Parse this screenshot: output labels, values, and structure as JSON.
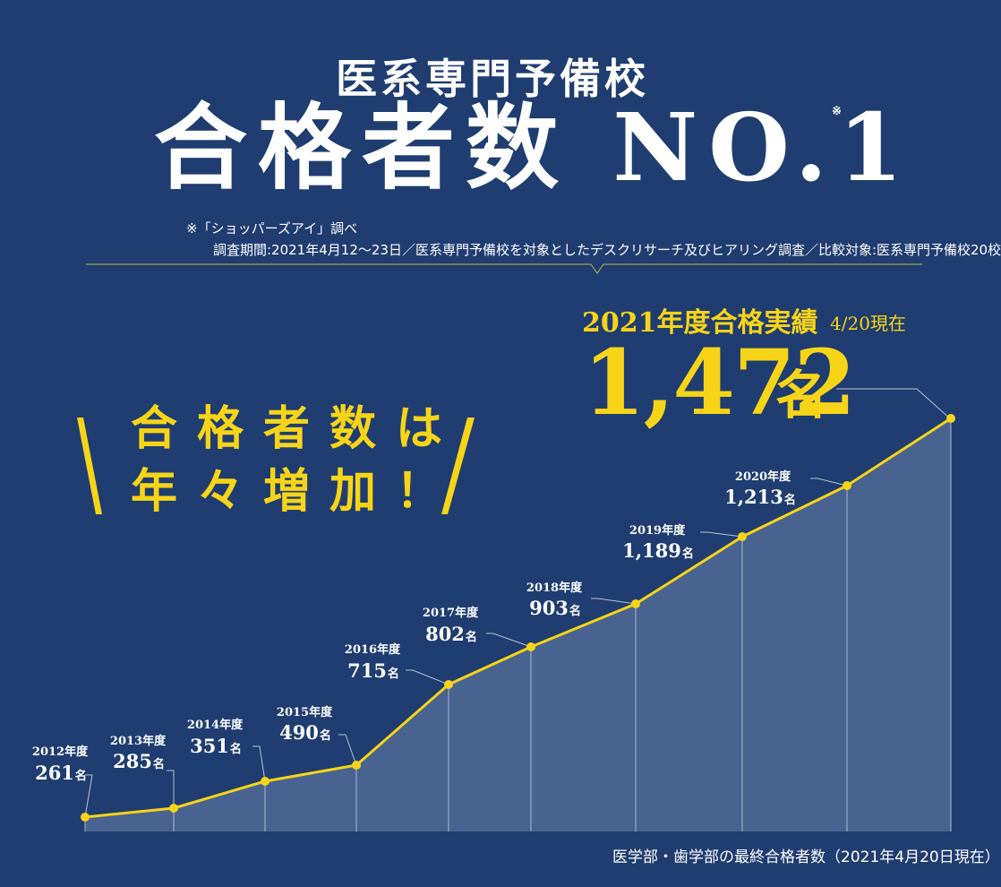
{
  "header": {
    "subtitle": "医系専門予備校",
    "headline": "合格者数 NO.1",
    "headline_mark": "※"
  },
  "notes": {
    "line1": "※「ショッパーズアイ」調べ",
    "line2": "調査期間:2021年4月12～23日／医系専門予備校を対象としたデスクリサーチ及びヒアリング調査／比較対象:医系専門予備校20校"
  },
  "callout": {
    "label": "2021年度合格実績",
    "date": "4/20現在",
    "number": "1,472",
    "unit": "名"
  },
  "slogan": {
    "line1": "合格者数は",
    "line2": "年々増加！"
  },
  "footnote": "医学部・歯学部の最終合格者数（2021年4月20日現在）",
  "colors": {
    "background": "#1f3d70",
    "accent": "#f7d418",
    "area_fill": "#48638f",
    "text": "#ffffff"
  },
  "chart_data": {
    "type": "area",
    "unit": "名",
    "categories": [
      "2012年度",
      "2013年度",
      "2014年度",
      "2015年度",
      "2016年度",
      "2017年度",
      "2018年度",
      "2019年度",
      "2020年度",
      "2021年度"
    ],
    "values": [
      261,
      285,
      351,
      490,
      715,
      802,
      903,
      1189,
      1213,
      1472
    ],
    "labels": [
      "261",
      "285",
      "351",
      "490",
      "715",
      "802",
      "903",
      "1,189",
      "1,213",
      "1,472"
    ]
  }
}
